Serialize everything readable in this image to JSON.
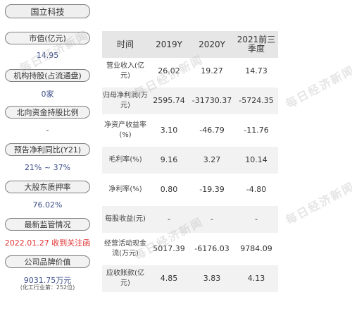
{
  "sidebar": {
    "title": "国立科技",
    "items": [
      {
        "label": "市值(亿元)",
        "value": "14.95"
      },
      {
        "label": "机构持股(占流通盘)",
        "value": "0家"
      },
      {
        "label": "北向资金持股比例",
        "value": "-"
      },
      {
        "label": "预告净利同比(Y21)",
        "value": "21% ~ 37%"
      },
      {
        "label": "大股东质押率",
        "value": "76.02%"
      },
      {
        "label": "最新监管情况",
        "value": "2022.01.27 收到关注函"
      },
      {
        "label": "公司品牌价值",
        "value": "9031.75万元",
        "sub": "(化工行业第：252位)"
      }
    ]
  },
  "table": {
    "headers": [
      "时间",
      "2019Y",
      "2020Y",
      "2021前三季度"
    ],
    "rows": [
      {
        "label": "营业收入(亿元)",
        "values": [
          "26.02",
          "19.27",
          "14.73"
        ]
      },
      {
        "label": "归母净利润(万元)",
        "values": [
          "2595.74",
          "-31730.37",
          "-5724.35"
        ]
      },
      {
        "label": "净资产收益率(%)",
        "values": [
          "3.10",
          "-46.79",
          "-11.76"
        ]
      },
      {
        "label": "毛利率(%)",
        "values": [
          "9.16",
          "3.27",
          "10.14"
        ]
      },
      {
        "label": "净利率(%)",
        "values": [
          "0.80",
          "-19.39",
          "-4.80"
        ]
      },
      {
        "label": "每股收益(元)",
        "values": [
          "-",
          "-",
          "-"
        ]
      },
      {
        "label": "经营活动现金流(万元)",
        "values": [
          "5017.39",
          "-6176.03",
          "9784.09"
        ]
      },
      {
        "label": "应收账款(亿元)",
        "values": [
          "4.85",
          "3.83",
          "4.13"
        ]
      }
    ]
  },
  "watermark": "每日经济新闻"
}
